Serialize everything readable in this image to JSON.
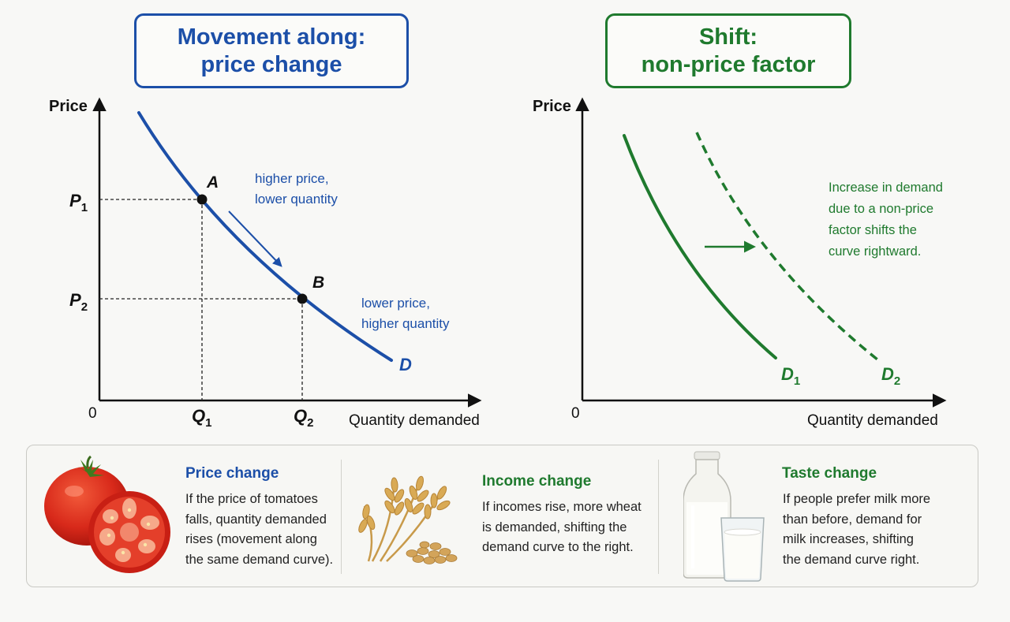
{
  "colors": {
    "blue": "#1c4fa8",
    "green": "#1f7a2e",
    "text": "#111111"
  },
  "left_chart": {
    "title_lines": [
      "Movement along:",
      "price change"
    ],
    "y_axis_label": "Price",
    "x_axis_label": "Quantity demanded",
    "origin_label": "0",
    "curve_label": "D",
    "points": [
      {
        "label": "A",
        "price_label": "P",
        "price_sub": "1",
        "quantity_label": "Q",
        "quantity_sub": "1"
      },
      {
        "label": "B",
        "price_label": "P",
        "price_sub": "2",
        "quantity_label": "Q",
        "quantity_sub": "2"
      }
    ],
    "annotation_upper": [
      "higher price,",
      "lower quantity"
    ],
    "annotation_lower": [
      "lower price,",
      "higher quantity"
    ]
  },
  "right_chart": {
    "title_lines": [
      "Shift:",
      "non-price factor"
    ],
    "y_axis_label": "Price",
    "x_axis_label": "Quantity demanded",
    "origin_label": "0",
    "curve_original": {
      "label": "D",
      "sub": "1"
    },
    "curve_shifted": {
      "label": "D",
      "sub": "2"
    },
    "annotation": [
      "Increase in demand",
      "due to a non-price",
      "factor shifts the",
      "curve rightward."
    ]
  },
  "cards": [
    {
      "icon": "tomato-icon",
      "title": "Price change",
      "lines": [
        "If the price of tomatoes",
        "falls, quantity demanded",
        "rises (movement along",
        "the same demand curve)."
      ]
    },
    {
      "icon": "wheat-icon",
      "title": "Income change",
      "lines": [
        "If incomes rise, more wheat",
        "is demanded, shifting the",
        "demand curve to the right."
      ]
    },
    {
      "icon": "milk-icon",
      "title": "Taste change",
      "lines": [
        "If people prefer milk more",
        "than before, demand for",
        "milk increases, shifting",
        "the demand curve right."
      ]
    }
  ]
}
